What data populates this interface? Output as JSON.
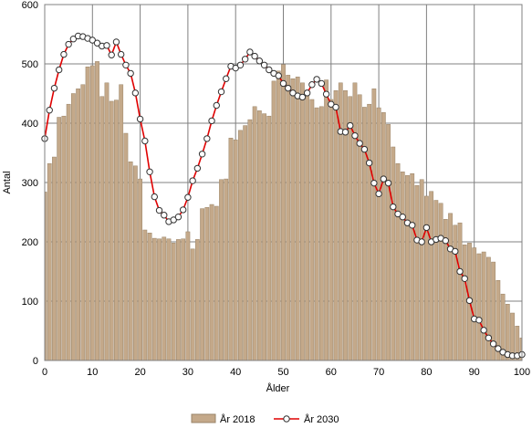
{
  "chart_data": {
    "type": "bar",
    "xlabel": "Ålder",
    "ylabel": "Antal",
    "xlim": [
      0,
      100
    ],
    "ylim": [
      0,
      600
    ],
    "xticks": [
      0,
      10,
      20,
      30,
      40,
      50,
      60,
      70,
      80,
      90,
      100
    ],
    "yticks": [
      0,
      100,
      200,
      300,
      400,
      500,
      600
    ],
    "grid": true,
    "legend_position": "bottom-center",
    "colors": {
      "bars": "#c4a98a",
      "bar_edge": "#9a8468",
      "line": "#e00000",
      "marker_fill": "#ffffff",
      "marker_edge": "#333333"
    },
    "x": [
      0,
      1,
      2,
      3,
      4,
      5,
      6,
      7,
      8,
      9,
      10,
      11,
      12,
      13,
      14,
      15,
      16,
      17,
      18,
      19,
      20,
      21,
      22,
      23,
      24,
      25,
      26,
      27,
      28,
      29,
      30,
      31,
      32,
      33,
      34,
      35,
      36,
      37,
      38,
      39,
      40,
      41,
      42,
      43,
      44,
      45,
      46,
      47,
      48,
      49,
      50,
      51,
      52,
      53,
      54,
      55,
      56,
      57,
      58,
      59,
      60,
      61,
      62,
      63,
      64,
      65,
      66,
      67,
      68,
      69,
      70,
      71,
      72,
      73,
      74,
      75,
      76,
      77,
      78,
      79,
      80,
      81,
      82,
      83,
      84,
      85,
      86,
      87,
      88,
      89,
      90,
      91,
      92,
      93,
      94,
      95,
      96,
      97,
      98,
      99,
      100
    ],
    "series": [
      {
        "name": "År 2018",
        "kind": "bar",
        "values": [
          284,
          332,
          343,
          410,
          412,
          432,
          450,
          458,
          465,
          495,
          497,
          504,
          445,
          468,
          437,
          439,
          465,
          383,
          335,
          328,
          306,
          220,
          215,
          206,
          205,
          208,
          205,
          198,
          204,
          205,
          217,
          188,
          204,
          256,
          258,
          263,
          260,
          305,
          306,
          375,
          372,
          388,
          396,
          406,
          428,
          421,
          416,
          412,
          471,
          488,
          499,
          481,
          475,
          478,
          468,
          456,
          440,
          426,
          428,
          473,
          440,
          455,
          468,
          455,
          445,
          468,
          448,
          427,
          432,
          458,
          426,
          418,
          398,
          360,
          332,
          318,
          312,
          315,
          295,
          305,
          277,
          285,
          270,
          265,
          238,
          248,
          228,
          232,
          195,
          198,
          190,
          180,
          183,
          174,
          166,
          135,
          112,
          95,
          80,
          58,
          38
        ]
      },
      {
        "name": "År 2030",
        "kind": "line",
        "values": [
          374,
          422,
          459,
          490,
          516,
          533,
          542,
          547,
          546,
          543,
          540,
          535,
          530,
          531,
          515,
          537,
          516,
          498,
          484,
          451,
          407,
          370,
          318,
          276,
          253,
          245,
          234,
          237,
          242,
          254,
          275,
          303,
          324,
          348,
          374,
          404,
          430,
          453,
          475,
          496,
          493,
          498,
          508,
          520,
          513,
          505,
          498,
          490,
          484,
          480,
          467,
          459,
          451,
          446,
          444,
          451,
          465,
          474,
          467,
          449,
          432,
          427,
          386,
          385,
          396,
          379,
          366,
          356,
          333,
          299,
          281,
          306,
          299,
          259,
          247,
          242,
          232,
          228,
          203,
          200,
          224,
          200,
          204,
          206,
          202,
          188,
          184,
          150,
          138,
          101,
          70,
          68,
          51,
          38,
          28,
          20,
          14,
          10,
          8,
          8,
          10
        ]
      }
    ]
  }
}
